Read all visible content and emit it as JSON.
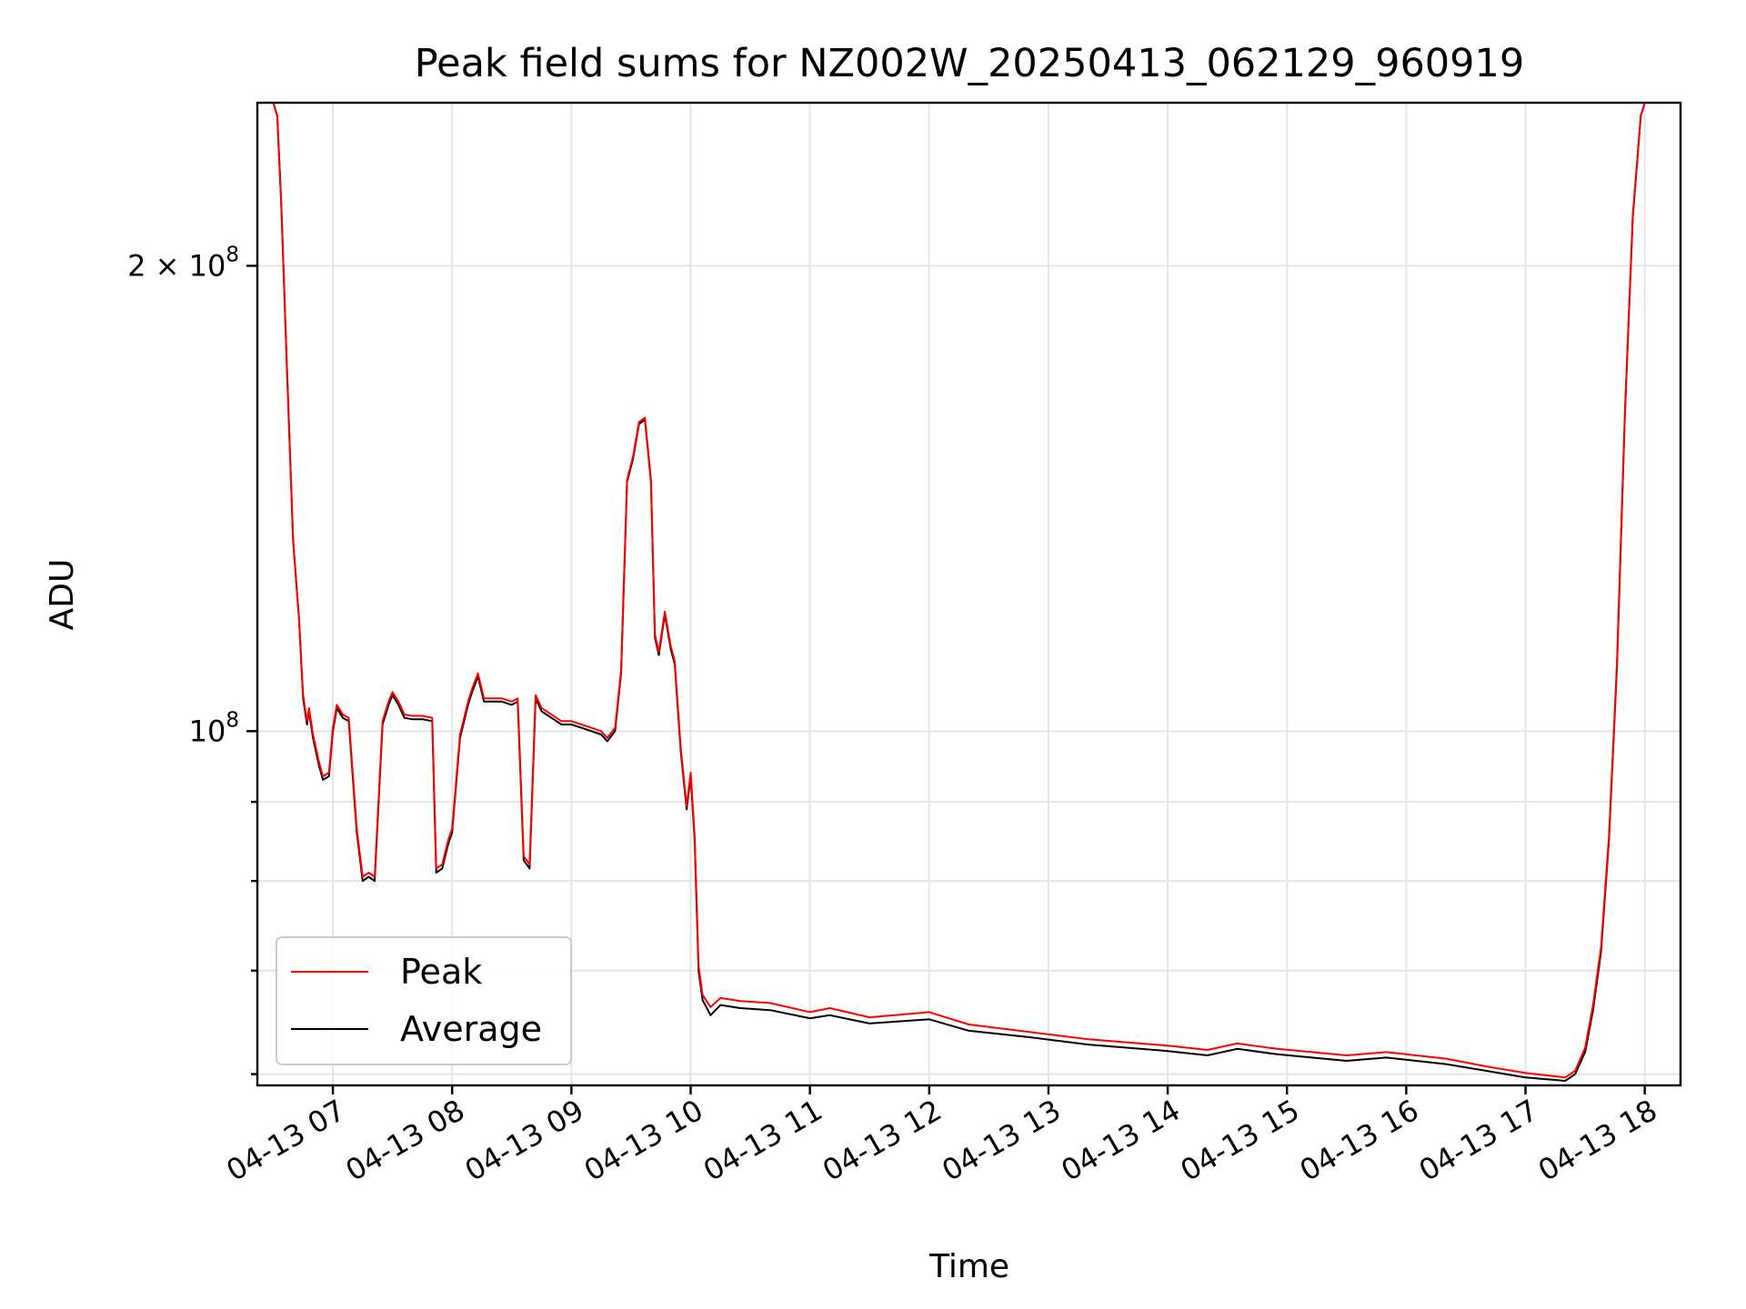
{
  "chart_data": {
    "type": "line",
    "title": "Peak field sums for NZ002W_20250413_062129_960919",
    "xlabel": "Time",
    "ylabel": "ADU",
    "yscale": "log",
    "xlim": [
      "2025-04-13T06:22",
      "2025-04-13T18:18"
    ],
    "ylim": [
      59000000,
      255000000
    ],
    "grid": true,
    "legend_position": "lower-left",
    "x_ticks": [
      {
        "t": "2025-04-13T07:00",
        "label": "04-13 07"
      },
      {
        "t": "2025-04-13T08:00",
        "label": "04-13 08"
      },
      {
        "t": "2025-04-13T09:00",
        "label": "04-13 09"
      },
      {
        "t": "2025-04-13T10:00",
        "label": "04-13 10"
      },
      {
        "t": "2025-04-13T11:00",
        "label": "04-13 11"
      },
      {
        "t": "2025-04-13T12:00",
        "label": "04-13 12"
      },
      {
        "t": "2025-04-13T13:00",
        "label": "04-13 13"
      },
      {
        "t": "2025-04-13T14:00",
        "label": "04-13 14"
      },
      {
        "t": "2025-04-13T15:00",
        "label": "04-13 15"
      },
      {
        "t": "2025-04-13T16:00",
        "label": "04-13 16"
      },
      {
        "t": "2025-04-13T17:00",
        "label": "04-13 17"
      },
      {
        "t": "2025-04-13T18:00",
        "label": "04-13 18"
      }
    ],
    "y_major_ticks": [
      {
        "value": 100000000,
        "base": "10",
        "exp": "8"
      },
      {
        "value": 200000000,
        "base": "2 × 10",
        "exp": "8"
      }
    ],
    "y_minor_ticks": [
      60000000,
      70000000,
      80000000,
      90000000
    ],
    "colors": {
      "peak": "#ff0000",
      "average": "#000000"
    },
    "series": [
      {
        "name": "Average",
        "color": "#000000",
        "points": [
          [
            "2025-04-13T06:30",
            255000000
          ],
          [
            "2025-04-13T06:32",
            250000000
          ],
          [
            "2025-04-13T06:34",
            220000000
          ],
          [
            "2025-04-13T06:37",
            170000000
          ],
          [
            "2025-04-13T06:40",
            133000000
          ],
          [
            "2025-04-13T06:43",
            118000000
          ],
          [
            "2025-04-13T06:45",
            105000000
          ],
          [
            "2025-04-13T06:47",
            101000000
          ],
          [
            "2025-04-13T06:48",
            103000000
          ],
          [
            "2025-04-13T06:50",
            99000000
          ],
          [
            "2025-04-13T06:53",
            95000000
          ],
          [
            "2025-04-13T06:55",
            93000000
          ],
          [
            "2025-04-13T06:58",
            93500000
          ],
          [
            "2025-04-13T07:00",
            100000000
          ],
          [
            "2025-04-13T07:02",
            103500000
          ],
          [
            "2025-04-13T07:05",
            102000000
          ],
          [
            "2025-04-13T07:08",
            101500000
          ],
          [
            "2025-04-13T07:12",
            86000000
          ],
          [
            "2025-04-13T07:15",
            80000000
          ],
          [
            "2025-04-13T07:18",
            80500000
          ],
          [
            "2025-04-13T07:21",
            80000000
          ],
          [
            "2025-04-13T07:25",
            101000000
          ],
          [
            "2025-04-13T07:28",
            104000000
          ],
          [
            "2025-04-13T07:30",
            105500000
          ],
          [
            "2025-04-13T07:33",
            104000000
          ],
          [
            "2025-04-13T07:36",
            102000000
          ],
          [
            "2025-04-13T07:40",
            101800000
          ],
          [
            "2025-04-13T07:45",
            101800000
          ],
          [
            "2025-04-13T07:50",
            101500000
          ],
          [
            "2025-04-13T07:52",
            81000000
          ],
          [
            "2025-04-13T07:55",
            81500000
          ],
          [
            "2025-04-13T07:58",
            84500000
          ],
          [
            "2025-04-13T08:00",
            86000000
          ],
          [
            "2025-04-13T08:04",
            99000000
          ],
          [
            "2025-04-13T08:08",
            104000000
          ],
          [
            "2025-04-13T08:10",
            106000000
          ],
          [
            "2025-04-13T08:13",
            108500000
          ],
          [
            "2025-04-13T08:16",
            104500000
          ],
          [
            "2025-04-13T08:20",
            104500000
          ],
          [
            "2025-04-13T08:25",
            104500000
          ],
          [
            "2025-04-13T08:30",
            104000000
          ],
          [
            "2025-04-13T08:33",
            104500000
          ],
          [
            "2025-04-13T08:36",
            82500000
          ],
          [
            "2025-04-13T08:39",
            81500000
          ],
          [
            "2025-04-13T08:42",
            105000000
          ],
          [
            "2025-04-13T08:45",
            103000000
          ],
          [
            "2025-04-13T08:50",
            102000000
          ],
          [
            "2025-04-13T08:55",
            101000000
          ],
          [
            "2025-04-13T09:00",
            101000000
          ],
          [
            "2025-04-13T09:05",
            100500000
          ],
          [
            "2025-04-13T09:10",
            100000000
          ],
          [
            "2025-04-13T09:15",
            99500000
          ],
          [
            "2025-04-13T09:18",
            98500000
          ],
          [
            "2025-04-13T09:22",
            100000000
          ],
          [
            "2025-04-13T09:25",
            109000000
          ],
          [
            "2025-04-13T09:28",
            145000000
          ],
          [
            "2025-04-13T09:31",
            150000000
          ],
          [
            "2025-04-13T09:34",
            158000000
          ],
          [
            "2025-04-13T09:37",
            159000000
          ],
          [
            "2025-04-13T09:40",
            145000000
          ],
          [
            "2025-04-13T09:42",
            115000000
          ],
          [
            "2025-04-13T09:44",
            112000000
          ],
          [
            "2025-04-13T09:47",
            119000000
          ],
          [
            "2025-04-13T09:50",
            113000000
          ],
          [
            "2025-04-13T09:52",
            110500000
          ],
          [
            "2025-04-13T09:55",
            97000000
          ],
          [
            "2025-04-13T09:58",
            89000000
          ],
          [
            "2025-04-13T10:00",
            93500000
          ],
          [
            "2025-04-13T10:02",
            85000000
          ],
          [
            "2025-04-13T10:04",
            70000000
          ],
          [
            "2025-04-13T10:06",
            67000000
          ],
          [
            "2025-04-13T10:10",
            65500000
          ],
          [
            "2025-04-13T10:15",
            66500000
          ],
          [
            "2025-04-13T10:25",
            66200000
          ],
          [
            "2025-04-13T10:40",
            66000000
          ],
          [
            "2025-04-13T11:00",
            65200000
          ],
          [
            "2025-04-13T11:10",
            65500000
          ],
          [
            "2025-04-13T11:30",
            64700000
          ],
          [
            "2025-04-13T12:00",
            65100000
          ],
          [
            "2025-04-13T12:20",
            64000000
          ],
          [
            "2025-04-13T12:50",
            63400000
          ],
          [
            "2025-04-13T13:20",
            62700000
          ],
          [
            "2025-04-13T14:00",
            62100000
          ],
          [
            "2025-04-13T14:20",
            61700000
          ],
          [
            "2025-04-13T14:35",
            62300000
          ],
          [
            "2025-04-13T14:55",
            61800000
          ],
          [
            "2025-04-13T15:30",
            61200000
          ],
          [
            "2025-04-13T15:50",
            61500000
          ],
          [
            "2025-04-13T16:20",
            60900000
          ],
          [
            "2025-04-13T16:40",
            60300000
          ],
          [
            "2025-04-13T17:00",
            59700000
          ],
          [
            "2025-04-13T17:20",
            59400000
          ],
          [
            "2025-04-13T17:25",
            60000000
          ],
          [
            "2025-04-13T17:30",
            62000000
          ],
          [
            "2025-04-13T17:34",
            66000000
          ],
          [
            "2025-04-13T17:38",
            72000000
          ],
          [
            "2025-04-13T17:42",
            85000000
          ],
          [
            "2025-04-13T17:46",
            110000000
          ],
          [
            "2025-04-13T17:50",
            160000000
          ],
          [
            "2025-04-13T17:54",
            215000000
          ],
          [
            "2025-04-13T17:58",
            250000000
          ],
          [
            "2025-04-13T18:00",
            255000000
          ]
        ]
      },
      {
        "name": "Peak",
        "color": "#ff0000",
        "points": [
          [
            "2025-04-13T06:30",
            255000000
          ],
          [
            "2025-04-13T06:32",
            250000000
          ],
          [
            "2025-04-13T06:34",
            220000000
          ],
          [
            "2025-04-13T06:37",
            170000000
          ],
          [
            "2025-04-13T06:40",
            133000000
          ],
          [
            "2025-04-13T06:43",
            118000000
          ],
          [
            "2025-04-13T06:45",
            105500000
          ],
          [
            "2025-04-13T06:47",
            101500000
          ],
          [
            "2025-04-13T06:48",
            103500000
          ],
          [
            "2025-04-13T06:50",
            99500000
          ],
          [
            "2025-04-13T06:53",
            95500000
          ],
          [
            "2025-04-13T06:55",
            93500000
          ],
          [
            "2025-04-13T06:58",
            94000000
          ],
          [
            "2025-04-13T07:00",
            100500000
          ],
          [
            "2025-04-13T07:02",
            104000000
          ],
          [
            "2025-04-13T07:05",
            102500000
          ],
          [
            "2025-04-13T07:08",
            102000000
          ],
          [
            "2025-04-13T07:12",
            86500000
          ],
          [
            "2025-04-13T07:15",
            80500000
          ],
          [
            "2025-04-13T07:18",
            81000000
          ],
          [
            "2025-04-13T07:21",
            80500000
          ],
          [
            "2025-04-13T07:25",
            101500000
          ],
          [
            "2025-04-13T07:28",
            104500000
          ],
          [
            "2025-04-13T07:30",
            106000000
          ],
          [
            "2025-04-13T07:33",
            104500000
          ],
          [
            "2025-04-13T07:36",
            102500000
          ],
          [
            "2025-04-13T07:40",
            102300000
          ],
          [
            "2025-04-13T07:45",
            102300000
          ],
          [
            "2025-04-13T07:50",
            102000000
          ],
          [
            "2025-04-13T07:52",
            81500000
          ],
          [
            "2025-04-13T07:55",
            82000000
          ],
          [
            "2025-04-13T07:58",
            85000000
          ],
          [
            "2025-04-13T08:00",
            86500000
          ],
          [
            "2025-04-13T08:04",
            99500000
          ],
          [
            "2025-04-13T08:08",
            104500000
          ],
          [
            "2025-04-13T08:10",
            106500000
          ],
          [
            "2025-04-13T08:13",
            109000000
          ],
          [
            "2025-04-13T08:16",
            105000000
          ],
          [
            "2025-04-13T08:20",
            105000000
          ],
          [
            "2025-04-13T08:25",
            105000000
          ],
          [
            "2025-04-13T08:30",
            104500000
          ],
          [
            "2025-04-13T08:33",
            105000000
          ],
          [
            "2025-04-13T08:36",
            83000000
          ],
          [
            "2025-04-13T08:39",
            82000000
          ],
          [
            "2025-04-13T08:42",
            105500000
          ],
          [
            "2025-04-13T08:45",
            103500000
          ],
          [
            "2025-04-13T08:50",
            102500000
          ],
          [
            "2025-04-13T08:55",
            101500000
          ],
          [
            "2025-04-13T09:00",
            101500000
          ],
          [
            "2025-04-13T09:05",
            101000000
          ],
          [
            "2025-04-13T09:10",
            100500000
          ],
          [
            "2025-04-13T09:15",
            100000000
          ],
          [
            "2025-04-13T09:18",
            99000000
          ],
          [
            "2025-04-13T09:22",
            100500000
          ],
          [
            "2025-04-13T09:25",
            109500000
          ],
          [
            "2025-04-13T09:28",
            145500000
          ],
          [
            "2025-04-13T09:31",
            150500000
          ],
          [
            "2025-04-13T09:34",
            158500000
          ],
          [
            "2025-04-13T09:37",
            159500000
          ],
          [
            "2025-04-13T09:40",
            145500000
          ],
          [
            "2025-04-13T09:42",
            115500000
          ],
          [
            "2025-04-13T09:44",
            112500000
          ],
          [
            "2025-04-13T09:47",
            119500000
          ],
          [
            "2025-04-13T09:50",
            113500000
          ],
          [
            "2025-04-13T09:52",
            111000000
          ],
          [
            "2025-04-13T09:55",
            97500000
          ],
          [
            "2025-04-13T09:58",
            89500000
          ],
          [
            "2025-04-13T10:00",
            94000000
          ],
          [
            "2025-04-13T10:02",
            85500000
          ],
          [
            "2025-04-13T10:04",
            70500000
          ],
          [
            "2025-04-13T10:06",
            67500000
          ],
          [
            "2025-04-13T10:10",
            66300000
          ],
          [
            "2025-04-13T10:15",
            67200000
          ],
          [
            "2025-04-13T10:25",
            66900000
          ],
          [
            "2025-04-13T10:40",
            66700000
          ],
          [
            "2025-04-13T11:00",
            65800000
          ],
          [
            "2025-04-13T11:10",
            66200000
          ],
          [
            "2025-04-13T11:30",
            65300000
          ],
          [
            "2025-04-13T12:00",
            65800000
          ],
          [
            "2025-04-13T12:20",
            64600000
          ],
          [
            "2025-04-13T12:50",
            63900000
          ],
          [
            "2025-04-13T13:20",
            63200000
          ],
          [
            "2025-04-13T14:00",
            62600000
          ],
          [
            "2025-04-13T14:20",
            62200000
          ],
          [
            "2025-04-13T14:35",
            62800000
          ],
          [
            "2025-04-13T14:55",
            62300000
          ],
          [
            "2025-04-13T15:30",
            61700000
          ],
          [
            "2025-04-13T15:50",
            62000000
          ],
          [
            "2025-04-13T16:20",
            61400000
          ],
          [
            "2025-04-13T16:40",
            60700000
          ],
          [
            "2025-04-13T17:00",
            60100000
          ],
          [
            "2025-04-13T17:20",
            59700000
          ],
          [
            "2025-04-13T17:25",
            60300000
          ],
          [
            "2025-04-13T17:30",
            62400000
          ],
          [
            "2025-04-13T17:34",
            66500000
          ],
          [
            "2025-04-13T17:38",
            72500000
          ],
          [
            "2025-04-13T17:42",
            85500000
          ],
          [
            "2025-04-13T17:46",
            110500000
          ],
          [
            "2025-04-13T17:50",
            160500000
          ],
          [
            "2025-04-13T17:54",
            215500000
          ],
          [
            "2025-04-13T17:58",
            250000000
          ],
          [
            "2025-04-13T18:00",
            255000000
          ]
        ]
      }
    ],
    "legend": [
      {
        "label": "Peak",
        "color": "#ff0000"
      },
      {
        "label": "Average",
        "color": "#000000"
      }
    ]
  }
}
